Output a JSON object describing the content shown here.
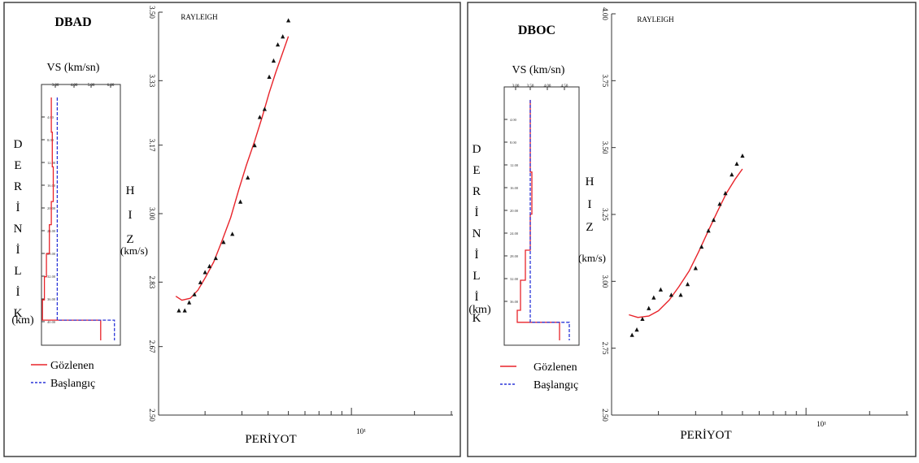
{
  "panels": [
    {
      "station": "DBAD",
      "vs_label": "VS (km/sn)",
      "vs_ticks": [
        "3.00",
        "4.00",
        "5.00",
        "6.00"
      ],
      "depth_letters": [
        "D",
        "E",
        "R",
        "İ",
        "N",
        "İ",
        "L",
        "İ",
        "K"
      ],
      "depth_unit": "(km)",
      "depth_ticks": [
        "4.00",
        "8.00",
        "12.00",
        "16.00",
        "20.00",
        "24.00",
        "28.00",
        "32.00",
        "36.00",
        "40.00"
      ],
      "legend": [
        {
          "label": "Gözlenen",
          "color": "#e8232a",
          "style": "solid"
        },
        {
          "label": "Başlangıç",
          "color": "#2a35d8",
          "style": "dashed"
        }
      ],
      "curve_title": "RAYLEIGH",
      "hiz_letters": [
        "H",
        "I",
        "Z"
      ],
      "hiz_unit": "(km/s)",
      "x_title": "PERİYOT",
      "x_tick_label": "10¹",
      "y_ticks": [
        "2.50",
        "2.67",
        "2.83",
        "3.00",
        "3.17",
        "3.33",
        "3.50"
      ]
    },
    {
      "station": "DBOC",
      "vs_label": "VS (km/sn)",
      "vs_ticks": [
        "3.00",
        "3.50",
        "4.00",
        "4.50"
      ],
      "depth_letters": [
        "D",
        "E",
        "R",
        "İ",
        "N",
        "İ",
        "L",
        "İ",
        "K"
      ],
      "depth_unit": "(km)",
      "depth_ticks": [
        "4.00",
        "8.00",
        "12.00",
        "16.00",
        "20.00",
        "24.00",
        "28.00",
        "32.00",
        "36.00"
      ],
      "legend": [
        {
          "label": "Gözlenen",
          "color": "#e8232a",
          "style": "solid"
        },
        {
          "label": "Başlangıç",
          "color": "#2a35d8",
          "style": "dashed"
        }
      ],
      "curve_title": "RAYLEIGH",
      "hiz_letters": [
        "H",
        "I",
        "Z"
      ],
      "hiz_unit": "(km/s)",
      "x_title": "PERİYOT",
      "x_tick_label": "10¹",
      "y_ticks": [
        "2.50",
        "2.75",
        "3.00",
        "3.25",
        "3.50",
        "3.75",
        "4.00"
      ]
    }
  ],
  "chart_data": [
    {
      "type": "line",
      "title": "DBAD",
      "xlabel": "VS (km/sn)",
      "ylabel": "DERİNLİK (km)",
      "xlim": [
        2.5,
        6.5
      ],
      "ylim": [
        0,
        42
      ],
      "series": [
        {
          "name": "Gözlenen",
          "points": [
            [
              3.0,
              0
            ],
            [
              3.0,
              6
            ],
            [
              3.05,
              6
            ],
            [
              3.05,
              12
            ],
            [
              3.1,
              12
            ],
            [
              3.1,
              18
            ],
            [
              3.0,
              18
            ],
            [
              3.0,
              22
            ],
            [
              2.9,
              22
            ],
            [
              2.9,
              27
            ],
            [
              2.75,
              27
            ],
            [
              2.75,
              31
            ],
            [
              2.65,
              31
            ],
            [
              2.65,
              35
            ],
            [
              2.55,
              35
            ],
            [
              2.55,
              38.5
            ],
            [
              5.5,
              38.5
            ],
            [
              5.5,
              42
            ]
          ]
        },
        {
          "name": "Başlangıç",
          "points": [
            [
              3.3,
              0
            ],
            [
              3.3,
              38.5
            ],
            [
              6.2,
              38.5
            ],
            [
              6.2,
              42
            ]
          ]
        }
      ]
    },
    {
      "type": "scatter",
      "title": "RAYLEIGH",
      "xlabel": "PERİYOT",
      "ylabel": "HIZ (km/s)",
      "xscale": "log",
      "xlim": [
        1.2,
        30
      ],
      "ylim": [
        2.5,
        3.5
      ],
      "series": [
        {
          "name": "observed",
          "x": [
            1.5,
            1.6,
            1.68,
            1.78,
            1.9,
            2.0,
            2.1,
            2.25,
            2.45,
            2.7,
            2.95,
            3.2,
            3.45,
            3.65,
            3.85,
            4.05,
            4.25,
            4.45,
            4.7,
            5.0
          ],
          "y": [
            2.76,
            2.76,
            2.78,
            2.8,
            2.83,
            2.855,
            2.87,
            2.89,
            2.93,
            2.95,
            3.03,
            3.09,
            3.17,
            3.24,
            3.26,
            3.34,
            3.38,
            3.42,
            3.44,
            3.48
          ]
        },
        {
          "name": "model",
          "x": [
            1.45,
            1.55,
            1.7,
            1.85,
            2.0,
            2.2,
            2.4,
            2.65,
            2.9,
            3.15,
            3.45,
            3.75,
            4.05,
            4.35,
            4.7,
            5.0
          ],
          "y": [
            2.795,
            2.785,
            2.79,
            2.81,
            2.84,
            2.88,
            2.93,
            2.99,
            3.06,
            3.12,
            3.18,
            3.24,
            3.3,
            3.35,
            3.4,
            3.44
          ]
        }
      ]
    },
    {
      "type": "line",
      "title": "DBOC",
      "xlabel": "VS (km/sn)",
      "ylabel": "DERİNLİK (km)",
      "xlim": [
        2.7,
        5.0
      ],
      "ylim": [
        0,
        40
      ],
      "series": [
        {
          "name": "Gözlenen",
          "points": [
            [
              3.5,
              0
            ],
            [
              3.5,
              12
            ],
            [
              3.55,
              12
            ],
            [
              3.55,
              19
            ],
            [
              3.5,
              19
            ],
            [
              3.5,
              25
            ],
            [
              3.35,
              25
            ],
            [
              3.35,
              30
            ],
            [
              3.2,
              30
            ],
            [
              3.2,
              35
            ],
            [
              3.1,
              35
            ],
            [
              3.1,
              37
            ],
            [
              4.4,
              37
            ],
            [
              4.4,
              40
            ]
          ]
        },
        {
          "name": "Başlangıç",
          "points": [
            [
              3.5,
              0
            ],
            [
              3.5,
              37
            ],
            [
              4.7,
              37
            ],
            [
              4.7,
              40
            ]
          ]
        }
      ]
    },
    {
      "type": "scatter",
      "title": "RAYLEIGH",
      "xlabel": "PERİYOT",
      "ylabel": "HIZ (km/s)",
      "xscale": "log",
      "xlim": [
        1.2,
        30
      ],
      "ylim": [
        2.5,
        4.0
      ],
      "series": [
        {
          "name": "observed",
          "x": [
            1.5,
            1.58,
            1.68,
            1.8,
            1.9,
            2.05,
            2.3,
            2.55,
            2.75,
            3.0,
            3.2,
            3.45,
            3.65,
            3.9,
            4.15,
            4.45,
            4.7,
            5.0
          ],
          "y": [
            2.8,
            2.82,
            2.86,
            2.9,
            2.94,
            2.97,
            2.95,
            2.95,
            2.99,
            3.05,
            3.13,
            3.19,
            3.23,
            3.29,
            3.33,
            3.4,
            3.44,
            3.47
          ]
        },
        {
          "name": "model",
          "x": [
            1.45,
            1.6,
            1.8,
            2.0,
            2.25,
            2.5,
            2.8,
            3.1,
            3.45,
            3.8,
            4.2,
            4.6,
            5.0
          ],
          "y": [
            2.875,
            2.865,
            2.87,
            2.89,
            2.93,
            2.98,
            3.04,
            3.11,
            3.19,
            3.26,
            3.33,
            3.38,
            3.42
          ]
        }
      ]
    }
  ],
  "colors": {
    "observed": "#e8232a",
    "initial": "#2a35d8",
    "frame": "#333333",
    "point": "#111111"
  }
}
